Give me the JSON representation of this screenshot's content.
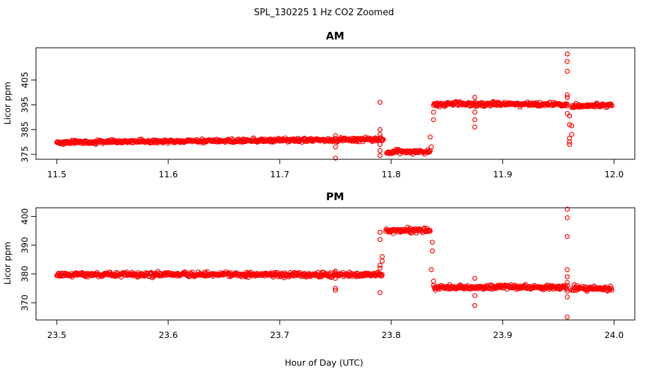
{
  "figure": {
    "title": "SPL_130225  1 Hz CO2 Zoomed",
    "xlabel": "Hour of Day (UTC)",
    "point_color": "#ff0000"
  },
  "chart_data": [
    {
      "type": "scatter",
      "title": "AM",
      "xlabel": "",
      "ylabel": "Licor ppm",
      "xlim": [
        11.5,
        12.0
      ],
      "ylim": [
        373,
        418
      ],
      "xticks": [
        11.5,
        11.6,
        11.7,
        11.8,
        11.9,
        12.0
      ],
      "xtick_labels": [
        "11.5",
        "11.6",
        "11.7",
        "11.8",
        "11.9",
        "12.0"
      ],
      "yticks": [
        375,
        385,
        395,
        405
      ],
      "ytick_labels": [
        "375",
        "385",
        "395",
        "405"
      ],
      "series": [
        {
          "color": "#ff0000",
          "segments": [
            {
              "x": [
                11.5,
                11.793
              ],
              "y": [
                379.8,
                381.1
              ]
            },
            {
              "x": [
                11.796,
                11.835
              ],
              "y": [
                376.0,
                376.0
              ]
            },
            {
              "x": [
                11.838,
                11.958
              ],
              "y": [
                395.2,
                395.2
              ]
            },
            {
              "x": [
                11.962,
                11.998
              ],
              "y": [
                394.4,
                394.9
              ]
            }
          ],
          "points": [
            {
              "x": 11.75,
              "y": 382.5
            },
            {
              "x": 11.75,
              "y": 378.0
            },
            {
              "x": 11.75,
              "y": 373.5
            },
            {
              "x": 11.79,
              "y": 396.0
            },
            {
              "x": 11.79,
              "y": 385.0
            },
            {
              "x": 11.79,
              "y": 383.0
            },
            {
              "x": 11.79,
              "y": 381.5
            },
            {
              "x": 11.79,
              "y": 379.0
            },
            {
              "x": 11.79,
              "y": 376.5
            },
            {
              "x": 11.79,
              "y": 374.5
            },
            {
              "x": 11.838,
              "y": 389.0
            },
            {
              "x": 11.838,
              "y": 392.0
            },
            {
              "x": 11.835,
              "y": 382.0
            },
            {
              "x": 11.836,
              "y": 378.0
            },
            {
              "x": 11.875,
              "y": 398.0
            },
            {
              "x": 11.875,
              "y": 392.0
            },
            {
              "x": 11.875,
              "y": 389.0
            },
            {
              "x": 11.875,
              "y": 386.0
            },
            {
              "x": 11.958,
              "y": 415.5
            },
            {
              "x": 11.958,
              "y": 412.5
            },
            {
              "x": 11.958,
              "y": 408.5
            },
            {
              "x": 11.958,
              "y": 399.0
            },
            {
              "x": 11.958,
              "y": 398.0
            },
            {
              "x": 11.958,
              "y": 391.5
            },
            {
              "x": 11.96,
              "y": 390.5
            },
            {
              "x": 11.96,
              "y": 387.0
            },
            {
              "x": 11.962,
              "y": 386.5
            },
            {
              "x": 11.962,
              "y": 383.0
            },
            {
              "x": 11.96,
              "y": 381.5
            },
            {
              "x": 11.96,
              "y": 380.0
            },
            {
              "x": 11.96,
              "y": 379.0
            }
          ]
        }
      ]
    },
    {
      "type": "scatter",
      "title": "PM",
      "xlabel": "",
      "ylabel": "Licor ppm",
      "xlim": [
        23.5,
        24.0
      ],
      "ylim": [
        364,
        403
      ],
      "xticks": [
        23.5,
        23.6,
        23.7,
        23.8,
        23.9,
        24.0
      ],
      "xtick_labels": [
        "23.5",
        "23.6",
        "23.7",
        "23.8",
        "23.9",
        "24.0"
      ],
      "yticks": [
        370,
        380,
        390,
        400
      ],
      "ytick_labels": [
        "370",
        "380",
        "390",
        "400"
      ],
      "series": [
        {
          "color": "#ff0000",
          "segments": [
            {
              "x": [
                23.5,
                23.792
              ],
              "y": [
                379.9,
                379.7
              ]
            },
            {
              "x": [
                23.795,
                23.835
              ],
              "y": [
                395.1,
                395.1
              ]
            },
            {
              "x": [
                23.838,
                23.958
              ],
              "y": [
                375.4,
                375.4
              ]
            },
            {
              "x": [
                23.962,
                23.998
              ],
              "y": [
                375.1,
                374.8
              ]
            }
          ],
          "points": [
            {
              "x": 23.75,
              "y": 381.0
            },
            {
              "x": 23.75,
              "y": 378.5
            },
            {
              "x": 23.75,
              "y": 375.0
            },
            {
              "x": 23.75,
              "y": 374.3
            },
            {
              "x": 23.79,
              "y": 394.5
            },
            {
              "x": 23.79,
              "y": 392.0
            },
            {
              "x": 23.792,
              "y": 386.0
            },
            {
              "x": 23.792,
              "y": 384.5
            },
            {
              "x": 23.79,
              "y": 383.0
            },
            {
              "x": 23.79,
              "y": 382.0
            },
            {
              "x": 23.79,
              "y": 373.5
            },
            {
              "x": 23.837,
              "y": 391.0
            },
            {
              "x": 23.837,
              "y": 388.0
            },
            {
              "x": 23.836,
              "y": 381.5
            },
            {
              "x": 23.838,
              "y": 377.5
            },
            {
              "x": 23.875,
              "y": 378.5
            },
            {
              "x": 23.875,
              "y": 375.0
            },
            {
              "x": 23.875,
              "y": 372.5
            },
            {
              "x": 23.875,
              "y": 369.0
            },
            {
              "x": 23.958,
              "y": 402.5
            },
            {
              "x": 23.958,
              "y": 399.5
            },
            {
              "x": 23.958,
              "y": 393.0
            },
            {
              "x": 23.958,
              "y": 381.5
            },
            {
              "x": 23.958,
              "y": 379.0
            },
            {
              "x": 23.958,
              "y": 377.0
            },
            {
              "x": 23.958,
              "y": 374.0
            },
            {
              "x": 23.958,
              "y": 372.0
            },
            {
              "x": 23.958,
              "y": 365.0
            }
          ]
        }
      ]
    }
  ]
}
